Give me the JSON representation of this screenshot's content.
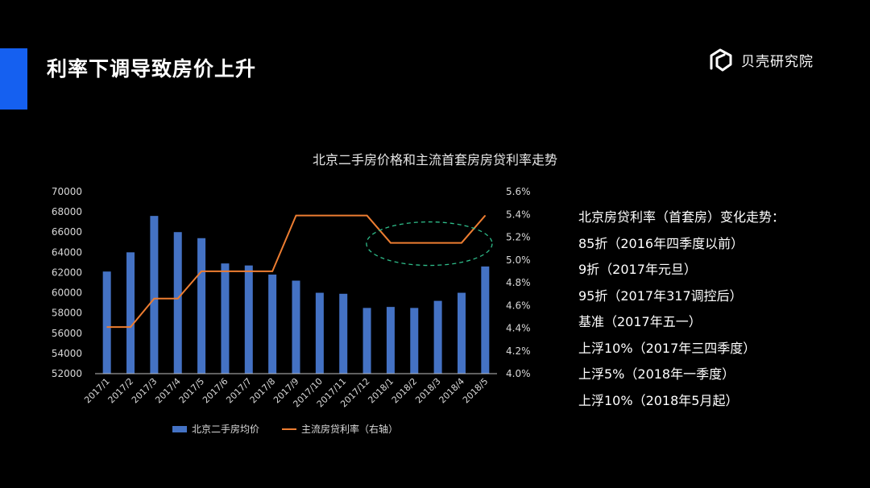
{
  "slide": {
    "title": "利率下调导致房价上升",
    "brand": "贝壳研究院",
    "colors": {
      "accent": "#1560f0",
      "bar": "#4472c4",
      "line": "#ed7d31",
      "highlight": "#2ebd8a"
    }
  },
  "chart_data": {
    "type": "bar+line",
    "title": "北京二手房价格和主流首套房房贷利率走势",
    "categories": [
      "2017/1",
      "2017/2",
      "2017/3",
      "2017/4",
      "2017/5",
      "2017/6",
      "2017/7",
      "2017/8",
      "2017/9",
      "2017/10",
      "2017/11",
      "2017/12",
      "2018/1",
      "2018/2",
      "2018/3",
      "2018/4",
      "2018/5"
    ],
    "series": [
      {
        "name": "北京二手房均价",
        "type": "bar",
        "axis": "left",
        "values": [
          62100,
          64000,
          67600,
          66000,
          65400,
          62900,
          62700,
          61800,
          61200,
          60000,
          59900,
          58500,
          58600,
          58500,
          59200,
          60000,
          62600
        ]
      },
      {
        "name": "主流房贷利率（右轴）",
        "type": "line",
        "axis": "right",
        "values": [
          4.41,
          4.41,
          4.66,
          4.66,
          4.9,
          4.9,
          4.9,
          4.9,
          5.39,
          5.39,
          5.39,
          5.39,
          5.15,
          5.15,
          5.15,
          5.15,
          5.39
        ]
      }
    ],
    "y_left": {
      "min": 52000,
      "max": 70000,
      "ticks": [
        "52000",
        "54000",
        "56000",
        "58000",
        "60000",
        "62000",
        "64000",
        "66000",
        "68000",
        "70000"
      ]
    },
    "y_right": {
      "min": 4.0,
      "max": 5.6,
      "ticks": [
        "4.0%",
        "4.2%",
        "4.4%",
        "4.6%",
        "4.8%",
        "5.0%",
        "5.2%",
        "5.4%",
        "5.6%"
      ]
    },
    "highlight": {
      "category_from": "2018/1",
      "category_to": "2018/4",
      "style": "dashed-ellipse"
    },
    "legend": "bottom",
    "grid": false
  },
  "notes": [
    "北京房贷利率（首套房）变化走势：",
    "85折（2016年四季度以前）",
    "9折（2017年元旦）",
    "95折（2017年317调控后）",
    "基准（2017年五一）",
    "上浮10%（2017年三四季度）",
    "上浮5%（2018年一季度）",
    "上浮10%（2018年5月起）"
  ]
}
